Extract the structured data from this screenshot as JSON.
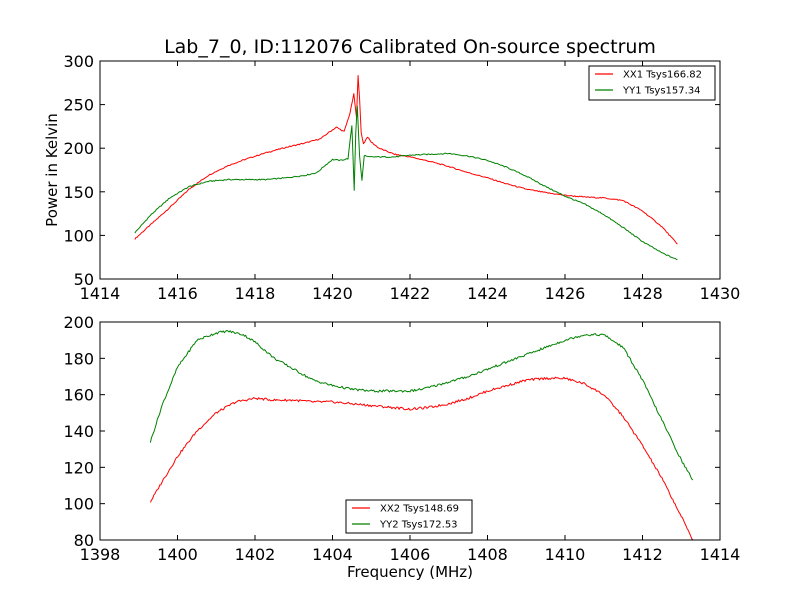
{
  "figure": {
    "title": "Lab_7_0, ID:112076 Calibrated On-source spectrum",
    "xlabel": "Frequency (MHz)",
    "ylabel": "Power in Kelvin"
  },
  "colors": {
    "red": "#ff0000",
    "green": "#008000"
  },
  "chart_data": [
    {
      "type": "line",
      "xlim": [
        1414,
        1430
      ],
      "ylim": [
        50,
        300
      ],
      "xticks": [
        1414,
        1416,
        1418,
        1420,
        1422,
        1424,
        1426,
        1428,
        1430
      ],
      "yticks": [
        50,
        100,
        150,
        200,
        250,
        300
      ],
      "legend": "top-right",
      "grid": false,
      "series": [
        {
          "name": "XX1 Tsys166.82",
          "color": "#ff0000",
          "x": [
            1414.9,
            1415.3,
            1415.8,
            1416.3,
            1416.8,
            1417.3,
            1417.8,
            1418.3,
            1418.8,
            1419.3,
            1419.7,
            1419.9,
            1420.1,
            1420.3,
            1420.45,
            1420.55,
            1420.62,
            1420.66,
            1420.7,
            1420.74,
            1420.8,
            1420.9,
            1421.0,
            1421.2,
            1421.6,
            1422.0,
            1422.5,
            1423.0,
            1423.5,
            1424.0,
            1424.5,
            1425.0,
            1425.5,
            1426.0,
            1426.5,
            1427.0,
            1427.5,
            1428.0,
            1428.5,
            1428.9
          ],
          "values": [
            96,
            112,
            132,
            153,
            169,
            180,
            188,
            195,
            201,
            206,
            211,
            218,
            224,
            219,
            240,
            262,
            235,
            284,
            255,
            218,
            205,
            213,
            207,
            200,
            193,
            190,
            185,
            179,
            172,
            166,
            159,
            153,
            149,
            146,
            144,
            143,
            140,
            128,
            110,
            90
          ]
        },
        {
          "name": "YY1 Tsys157.34",
          "color": "#008000",
          "x": [
            1414.9,
            1415.3,
            1415.8,
            1416.3,
            1416.8,
            1417.3,
            1417.8,
            1418.3,
            1418.8,
            1419.3,
            1419.6,
            1419.8,
            1420.0,
            1420.2,
            1420.4,
            1420.5,
            1420.56,
            1420.6,
            1420.64,
            1420.7,
            1420.76,
            1420.82,
            1420.9,
            1421.2,
            1421.6,
            1422.0,
            1422.5,
            1423.0,
            1423.5,
            1424.0,
            1424.5,
            1425.0,
            1425.5,
            1426.0,
            1426.5,
            1427.0,
            1427.5,
            1428.0,
            1428.5,
            1428.9
          ],
          "values": [
            103,
            123,
            143,
            156,
            162,
            164,
            164,
            164,
            166,
            169,
            172,
            180,
            187,
            186,
            188,
            226,
            152,
            218,
            248,
            190,
            163,
            192,
            190,
            190,
            190,
            192,
            193,
            194,
            191,
            186,
            178,
            168,
            156,
            145,
            136,
            124,
            109,
            93,
            80,
            72
          ]
        }
      ]
    },
    {
      "type": "line",
      "xlim": [
        1398,
        1414
      ],
      "ylim": [
        80,
        200
      ],
      "xticks": [
        1398,
        1400,
        1402,
        1404,
        1406,
        1408,
        1410,
        1412,
        1414
      ],
      "yticks": [
        80,
        100,
        120,
        140,
        160,
        180,
        200
      ],
      "legend": "bottom-center",
      "grid": false,
      "series": [
        {
          "name": "XX2 Tsys148.69",
          "color": "#ff0000",
          "x": [
            1399.3,
            1399.6,
            1400.0,
            1400.5,
            1401.0,
            1401.5,
            1402.0,
            1402.5,
            1403.0,
            1403.5,
            1404.0,
            1404.5,
            1405.0,
            1405.5,
            1406.0,
            1406.5,
            1407.0,
            1407.5,
            1408.0,
            1408.5,
            1409.0,
            1409.5,
            1410.0,
            1410.5,
            1411.0,
            1411.5,
            1412.0,
            1412.5,
            1413.0,
            1413.3
          ],
          "values": [
            101,
            112,
            126,
            140,
            150,
            156,
            158,
            157,
            157,
            156,
            156,
            155,
            154,
            153,
            152,
            153,
            155,
            158,
            162,
            165,
            168,
            169,
            169,
            166,
            160,
            148,
            132,
            114,
            93,
            80
          ]
        },
        {
          "name": "YY2 Tsys172.53",
          "color": "#008000",
          "x": [
            1399.3,
            1399.6,
            1400.0,
            1400.5,
            1401.0,
            1401.3,
            1401.7,
            1402.0,
            1402.5,
            1403.0,
            1403.5,
            1404.0,
            1404.5,
            1405.0,
            1405.5,
            1406.0,
            1406.3,
            1406.5,
            1407.0,
            1407.5,
            1408.0,
            1408.5,
            1409.0,
            1409.5,
            1410.0,
            1410.5,
            1411.0,
            1411.5,
            1412.0,
            1412.5,
            1413.0,
            1413.3
          ],
          "values": [
            134,
            154,
            175,
            190,
            194,
            195,
            193,
            189,
            180,
            174,
            168,
            165,
            163,
            162,
            162,
            162,
            163,
            164,
            167,
            170,
            174,
            178,
            182,
            186,
            190,
            193,
            193,
            186,
            168,
            146,
            124,
            113
          ]
        }
      ]
    }
  ]
}
